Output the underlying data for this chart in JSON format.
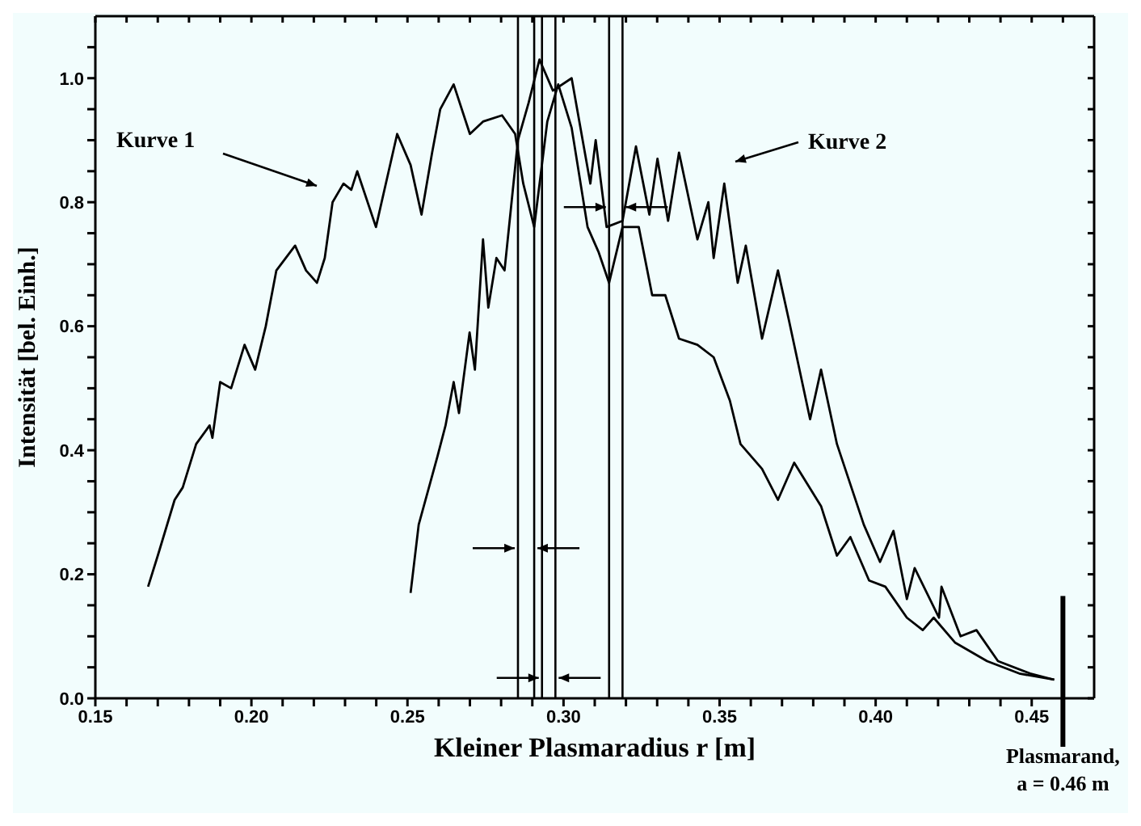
{
  "chart_data": {
    "type": "line",
    "xlabel": "Kleiner Plasmaradius r [m]",
    "ylabel": "Intensität [bel. Einh.]",
    "xlim": [
      0.15,
      0.47
    ],
    "ylim": [
      0,
      1.1
    ],
    "xticks": [
      {
        "value": 0.15,
        "label": "0.15"
      },
      {
        "value": 0.16,
        "label": null
      },
      {
        "value": 0.17,
        "label": null
      },
      {
        "value": 0.18,
        "label": null
      },
      {
        "value": 0.19,
        "label": null
      },
      {
        "value": 0.2,
        "label": "0.20"
      },
      {
        "value": 0.21,
        "label": null
      },
      {
        "value": 0.22,
        "label": null
      },
      {
        "value": 0.23,
        "label": null
      },
      {
        "value": 0.24,
        "label": null
      },
      {
        "value": 0.25,
        "label": "0.25"
      },
      {
        "value": 0.26,
        "label": null
      },
      {
        "value": 0.27,
        "label": null
      },
      {
        "value": 0.28,
        "label": null
      },
      {
        "value": 0.29,
        "label": null
      },
      {
        "value": 0.3,
        "label": "0.30"
      },
      {
        "value": 0.31,
        "label": null
      },
      {
        "value": 0.32,
        "label": null
      },
      {
        "value": 0.33,
        "label": null
      },
      {
        "value": 0.34,
        "label": null
      },
      {
        "value": 0.35,
        "label": "0.35"
      },
      {
        "value": 0.36,
        "label": null
      },
      {
        "value": 0.37,
        "label": null
      },
      {
        "value": 0.38,
        "label": null
      },
      {
        "value": 0.39,
        "label": null
      },
      {
        "value": 0.4,
        "label": "0.40"
      },
      {
        "value": 0.41,
        "label": null
      },
      {
        "value": 0.42,
        "label": null
      },
      {
        "value": 0.43,
        "label": null
      },
      {
        "value": 0.44,
        "label": null
      },
      {
        "value": 0.45,
        "label": "0.45"
      },
      {
        "value": 0.46,
        "label": null
      }
    ],
    "yticks": [
      {
        "value": 0,
        "label": "0.0"
      },
      {
        "value": 0.05,
        "label": null
      },
      {
        "value": 0.1,
        "label": null
      },
      {
        "value": 0.15,
        "label": null
      },
      {
        "value": 0.2,
        "label": "0.2"
      },
      {
        "value": 0.25,
        "label": null
      },
      {
        "value": 0.3,
        "label": null
      },
      {
        "value": 0.35,
        "label": null
      },
      {
        "value": 0.4,
        "label": "0.4"
      },
      {
        "value": 0.45,
        "label": null
      },
      {
        "value": 0.5,
        "label": null
      },
      {
        "value": 0.55,
        "label": null
      },
      {
        "value": 0.6,
        "label": "0.6"
      },
      {
        "value": 0.65,
        "label": null
      },
      {
        "value": 0.7,
        "label": null
      },
      {
        "value": 0.75,
        "label": null
      },
      {
        "value": 0.8,
        "label": "0.8"
      },
      {
        "value": 0.85,
        "label": null
      },
      {
        "value": 0.9,
        "label": null
      },
      {
        "value": 0.95,
        "label": null
      },
      {
        "value": 1.0,
        "label": "1.0"
      },
      {
        "value": 1.05,
        "label": null
      }
    ],
    "marker": "none",
    "line_style": "solid",
    "series": [
      {
        "color": "#000000",
        "x": [
          0.1669,
          0.17,
          0.1754,
          0.178,
          0.1823,
          0.1866,
          0.1875,
          0.19,
          0.1935,
          0.1978,
          0.2012,
          0.2046,
          0.208,
          0.214,
          0.2175,
          0.221,
          0.2235,
          0.226,
          0.2295,
          0.232,
          0.2339,
          0.2399,
          0.2467,
          0.251,
          0.2545,
          0.2579,
          0.2605,
          0.2648,
          0.27,
          0.2742,
          0.2803,
          0.2845,
          0.2871,
          0.2906,
          0.2948,
          0.2983,
          0.3026,
          0.3077,
          0.3112,
          0.3146,
          0.3189,
          0.3241,
          0.3284,
          0.3326,
          0.337,
          0.3429,
          0.3481,
          0.3533,
          0.3567,
          0.3636,
          0.3687,
          0.3739,
          0.3825,
          0.3876,
          0.3919,
          0.3979,
          0.4031,
          0.41,
          0.4151,
          0.4186,
          0.4254,
          0.4357,
          0.446,
          0.4572
        ],
        "values": [
          0.18,
          0.23,
          0.32,
          0.34,
          0.41,
          0.44,
          0.42,
          0.51,
          0.5,
          0.57,
          0.53,
          0.6,
          0.69,
          0.73,
          0.69,
          0.67,
          0.71,
          0.8,
          0.83,
          0.82,
          0.85,
          0.76,
          0.91,
          0.86,
          0.78,
          0.88,
          0.95,
          0.99,
          0.91,
          0.93,
          0.94,
          0.91,
          0.83,
          0.76,
          0.93,
          0.99,
          0.92,
          0.76,
          0.72,
          0.67,
          0.76,
          0.76,
          0.65,
          0.65,
          0.58,
          0.57,
          0.55,
          0.48,
          0.41,
          0.37,
          0.32,
          0.38,
          0.31,
          0.23,
          0.26,
          0.19,
          0.18,
          0.13,
          0.11,
          0.13,
          0.09,
          0.06,
          0.04,
          0.03
        ]
      },
      {
        "color": "#000000",
        "x": [
          0.251,
          0.2536,
          0.2596,
          0.2622,
          0.2648,
          0.2665,
          0.2699,
          0.2716,
          0.2742,
          0.2759,
          0.2785,
          0.2811,
          0.2854,
          0.2888,
          0.2923,
          0.2966,
          0.3026,
          0.3086,
          0.3103,
          0.3138,
          0.3189,
          0.3232,
          0.3275,
          0.3301,
          0.3335,
          0.337,
          0.3429,
          0.3464,
          0.3481,
          0.3515,
          0.3558,
          0.3584,
          0.3636,
          0.3687,
          0.3722,
          0.379,
          0.3825,
          0.3876,
          0.3962,
          0.4014,
          0.4057,
          0.41,
          0.4125,
          0.4203,
          0.4211,
          0.4272,
          0.4323,
          0.4392,
          0.4495,
          0.4572
        ],
        "values": [
          0.17,
          0.28,
          0.39,
          0.44,
          0.51,
          0.46,
          0.59,
          0.53,
          0.74,
          0.63,
          0.71,
          0.69,
          0.9,
          0.96,
          1.03,
          0.98,
          1.0,
          0.83,
          0.9,
          0.76,
          0.77,
          0.89,
          0.78,
          0.87,
          0.77,
          0.88,
          0.74,
          0.8,
          0.71,
          0.83,
          0.67,
          0.73,
          0.58,
          0.69,
          0.61,
          0.45,
          0.53,
          0.41,
          0.28,
          0.22,
          0.27,
          0.16,
          0.21,
          0.13,
          0.18,
          0.1,
          0.11,
          0.06,
          0.04,
          0.03
        ]
      }
    ],
    "ref_lines": [
      {
        "axis": "x",
        "value": 0.2854,
        "color": "#000000"
      },
      {
        "axis": "x",
        "value": 0.2906,
        "color": "#000000"
      },
      {
        "axis": "x",
        "value": 0.2931,
        "color": "#000000"
      },
      {
        "axis": "x",
        "value": 0.2974,
        "color": "#000000"
      },
      {
        "axis": "x",
        "value": 0.3146,
        "color": "#000000"
      },
      {
        "axis": "x",
        "value": 0.3189,
        "color": "#000000"
      },
      {
        "axis": "x",
        "value": 0.46,
        "label": "Plasmarand,\na = 0.46 m",
        "color": "#000000"
      }
    ],
    "annotations": [
      "Kurve 1",
      "Kurve 2"
    ]
  }
}
